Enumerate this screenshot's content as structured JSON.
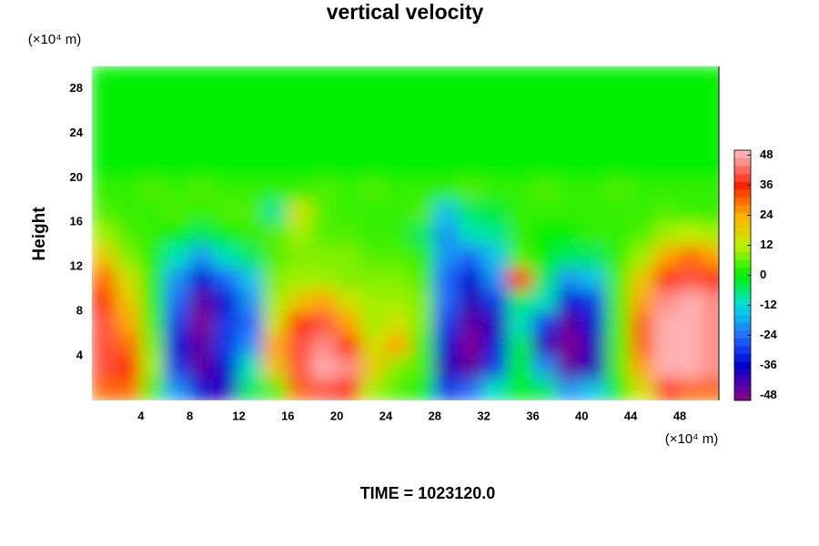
{
  "chart_data": {
    "type": "heatmap",
    "title": "vertical velocity",
    "y_label": "Height",
    "y_unit": "(×10⁴ m)",
    "x_unit": "(×10⁴ m)",
    "footer": "TIME = 1023120.0",
    "xlim": [
      0,
      51.2
    ],
    "ylim": [
      0,
      30
    ],
    "xticks": [
      4,
      8,
      12,
      16,
      20,
      24,
      28,
      32,
      36,
      40,
      44,
      48
    ],
    "yticks": [
      4,
      8,
      12,
      16,
      20,
      24,
      28
    ],
    "clim": [
      -50,
      50
    ],
    "cticks": [
      -48,
      -36,
      -24,
      -12,
      0,
      12,
      24,
      36,
      48
    ],
    "colorscale": [
      "#800090",
      "#0000d0",
      "#2070ff",
      "#00e0e0",
      "#00f000",
      "#c0f000",
      "#ffb000",
      "#ff2000",
      "#ffb0b0"
    ],
    "x": [
      1,
      3,
      5,
      7,
      9,
      11,
      13,
      15,
      17,
      19,
      21,
      23,
      25,
      27,
      29,
      31,
      33,
      35,
      37,
      39,
      41,
      43,
      45,
      47,
      49,
      51
    ],
    "y": [
      1,
      3,
      5,
      7,
      9,
      11,
      13,
      15,
      17,
      19,
      21,
      23,
      25,
      27,
      29
    ],
    "z": [
      [
        30,
        30,
        5,
        -20,
        -35,
        -40,
        -5,
        5,
        30,
        40,
        35,
        10,
        5,
        0,
        -30,
        -25,
        -10,
        0,
        -5,
        -20,
        -15,
        0,
        15,
        35,
        30,
        30
      ],
      [
        40,
        35,
        10,
        -30,
        -45,
        -35,
        -10,
        20,
        40,
        48,
        45,
        20,
        8,
        5,
        -40,
        -45,
        -30,
        0,
        -20,
        -45,
        -40,
        5,
        25,
        48,
        48,
        45
      ],
      [
        40,
        30,
        8,
        -35,
        -45,
        -30,
        -20,
        25,
        40,
        45,
        35,
        15,
        25,
        5,
        -35,
        -48,
        -35,
        -5,
        -40,
        -48,
        -40,
        5,
        30,
        48,
        48,
        45
      ],
      [
        40,
        25,
        5,
        -30,
        -48,
        -30,
        -25,
        15,
        35,
        40,
        25,
        10,
        15,
        8,
        -30,
        -45,
        -40,
        -10,
        -30,
        -45,
        -35,
        5,
        30,
        48,
        48,
        45
      ],
      [
        35,
        20,
        3,
        -25,
        -45,
        -35,
        -20,
        10,
        20,
        25,
        15,
        10,
        10,
        8,
        -25,
        -40,
        -30,
        -5,
        -10,
        -35,
        -30,
        5,
        25,
        45,
        48,
        45
      ],
      [
        30,
        15,
        3,
        -20,
        -35,
        -25,
        -15,
        8,
        10,
        10,
        8,
        8,
        8,
        5,
        -25,
        -35,
        -20,
        35,
        -5,
        -20,
        -15,
        5,
        20,
        35,
        40,
        35
      ],
      [
        20,
        8,
        2,
        -10,
        -20,
        -10,
        -5,
        5,
        8,
        8,
        8,
        5,
        5,
        3,
        -20,
        -25,
        -15,
        5,
        0,
        -5,
        -5,
        3,
        10,
        25,
        30,
        25
      ],
      [
        10,
        5,
        3,
        0,
        -5,
        0,
        3,
        5,
        10,
        5,
        5,
        3,
        3,
        -5,
        -20,
        -10,
        -8,
        3,
        0,
        0,
        3,
        3,
        5,
        10,
        12,
        10
      ],
      [
        5,
        3,
        3,
        5,
        3,
        5,
        5,
        -8,
        15,
        5,
        3,
        3,
        3,
        5,
        -15,
        -5,
        -3,
        3,
        3,
        3,
        3,
        3,
        3,
        5,
        3,
        3
      ],
      [
        3,
        3,
        5,
        3,
        5,
        3,
        3,
        3,
        3,
        5,
        3,
        5,
        3,
        3,
        3,
        5,
        3,
        3,
        5,
        3,
        3,
        5,
        3,
        3,
        3,
        3
      ],
      [
        0,
        0,
        0,
        0,
        0,
        0,
        0,
        0,
        0,
        0,
        0,
        0,
        0,
        0,
        0,
        0,
        0,
        0,
        0,
        0,
        0,
        0,
        0,
        0,
        0,
        0
      ],
      [
        0,
        0,
        0,
        0,
        0,
        0,
        0,
        0,
        0,
        0,
        0,
        0,
        0,
        0,
        0,
        0,
        0,
        0,
        0,
        0,
        0,
        0,
        0,
        0,
        0,
        0
      ],
      [
        0,
        0,
        0,
        0,
        0,
        0,
        0,
        0,
        0,
        0,
        0,
        0,
        0,
        0,
        0,
        0,
        0,
        0,
        0,
        0,
        0,
        0,
        0,
        0,
        0,
        0
      ],
      [
        0,
        0,
        0,
        0,
        0,
        0,
        0,
        0,
        0,
        0,
        0,
        0,
        0,
        0,
        0,
        0,
        0,
        0,
        0,
        0,
        0,
        0,
        0,
        0,
        0,
        0
      ],
      [
        0,
        0,
        0,
        0,
        0,
        0,
        0,
        0,
        0,
        0,
        0,
        0,
        0,
        0,
        0,
        0,
        0,
        0,
        0,
        0,
        0,
        0,
        0,
        0,
        0,
        0
      ]
    ]
  }
}
